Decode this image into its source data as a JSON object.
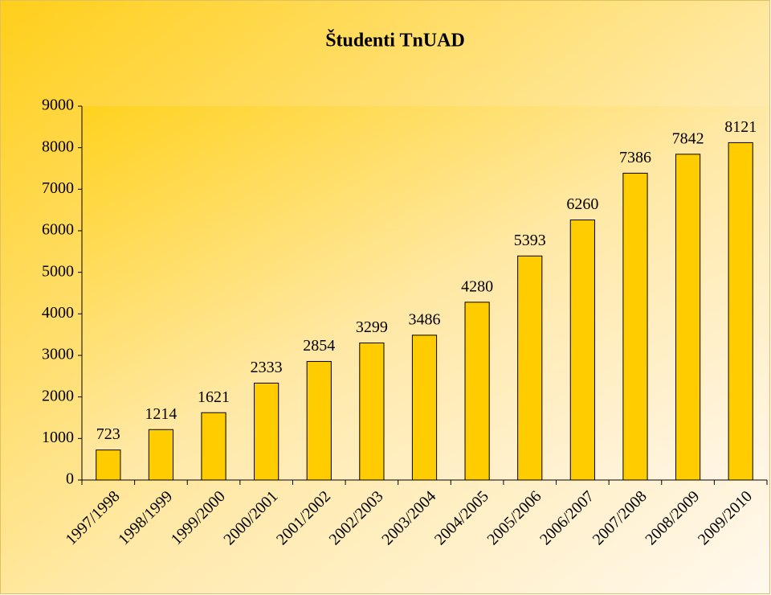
{
  "chart_data": {
    "type": "bar",
    "title": "Študenti TnUAD",
    "categories": [
      "1997/1998",
      "1998/1999",
      "1999/2000",
      "2000/2001",
      "2001/2002",
      "2002/2003",
      "2003/2004",
      "2004/2005",
      "2005/2006",
      "2006/2007",
      "2007/2008",
      "2008/2009",
      "2009/2010"
    ],
    "values": [
      723,
      1214,
      1621,
      2333,
      2854,
      3299,
      3486,
      4280,
      5393,
      6260,
      7386,
      7842,
      8121
    ],
    "color": "#ffcc00",
    "ylim": [
      0,
      9000
    ],
    "yticks": [
      0,
      1000,
      2000,
      3000,
      4000,
      5000,
      6000,
      7000,
      8000,
      9000
    ],
    "grid": false
  }
}
